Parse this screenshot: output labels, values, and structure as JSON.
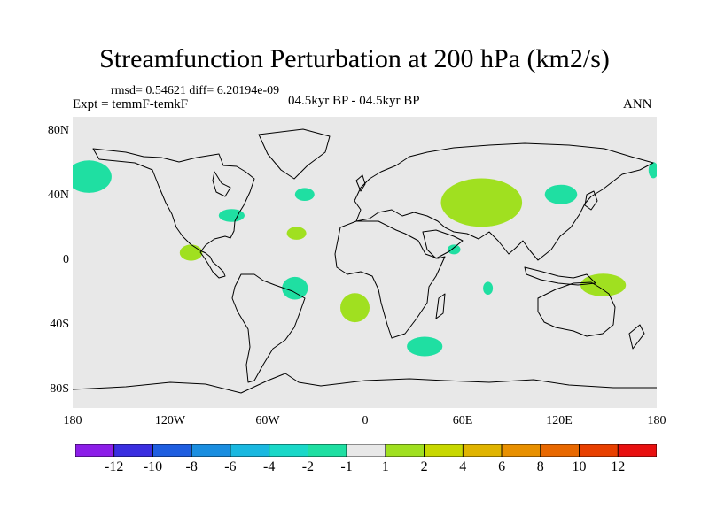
{
  "title": "Streamfunction Perturbation at 200 hPa (km2/s)",
  "stats": "rmsd= 0.54621 diff= 6.20194e-09",
  "expt": "Expt = temmF-temkF",
  "period": "04.5kyr BP - 04.5kyr BP",
  "season": "ANN",
  "colors": {
    "ocean": "#e8e8e8",
    "coast": "#000000",
    "teal": "#1fdfa2",
    "lime": "#a0e020"
  },
  "axes": {
    "lat_labels": [
      "80N",
      "40N",
      "0",
      "40S",
      "80S"
    ],
    "lon_labels": [
      "180",
      "120W",
      "60W",
      "0",
      "60E",
      "120E",
      "180"
    ]
  },
  "anomalies": [
    {
      "name": "north-pacific-west",
      "lon": -170,
      "lat": 53,
      "rx": 14,
      "ry": 10,
      "level": "-1",
      "color": "teal"
    },
    {
      "name": "east-atlantic-north",
      "lon": -37,
      "lat": 42,
      "rx": 6,
      "ry": 4,
      "level": "-1",
      "color": "teal"
    },
    {
      "name": "florida",
      "lon": -82,
      "lat": 29,
      "rx": 8,
      "ry": 4,
      "level": "-1",
      "color": "teal"
    },
    {
      "name": "west-africa-coast",
      "lon": -42,
      "lat": 18,
      "rx": 6,
      "ry": 4,
      "level": "1",
      "color": "lime"
    },
    {
      "name": "east-pacific-tropic",
      "lon": -107,
      "lat": 6,
      "rx": 7,
      "ry": 5,
      "level": "1",
      "color": "lime"
    },
    {
      "name": "brazil-coast",
      "lon": -43,
      "lat": -16,
      "rx": 8,
      "ry": 7,
      "level": "-1",
      "color": "teal"
    },
    {
      "name": "south-atlantic",
      "lon": -6,
      "lat": -28,
      "rx": 9,
      "ry": 9,
      "level": "1",
      "color": "lime"
    },
    {
      "name": "south-indian-ocean",
      "lon": 37,
      "lat": -52,
      "rx": 11,
      "ry": 6,
      "level": "-1",
      "color": "teal"
    },
    {
      "name": "horn-of-africa",
      "lon": 55,
      "lat": 8,
      "rx": 4,
      "ry": 3,
      "level": "-1",
      "color": "teal"
    },
    {
      "name": "indian-ocean-mid",
      "lon": 76,
      "lat": -16,
      "rx": 3,
      "ry": 4,
      "level": "-1",
      "color": "teal"
    },
    {
      "name": "central-asia",
      "lon": 72,
      "lat": 37,
      "rx": 25,
      "ry": 15,
      "level": "2",
      "color": "lime"
    },
    {
      "name": "north-china",
      "lon": 121,
      "lat": 42,
      "rx": 10,
      "ry": 6,
      "level": "-1",
      "color": "teal"
    },
    {
      "name": "north-australia",
      "lon": 147,
      "lat": -14,
      "rx": 14,
      "ry": 7,
      "level": "1",
      "color": "lime"
    },
    {
      "name": "north-pacific-east",
      "lon": 178,
      "lat": 57,
      "rx": 3,
      "ry": 5,
      "level": "-1",
      "color": "teal"
    }
  ],
  "colorbar": {
    "colors": [
      "#8c1ee8",
      "#3a2ee0",
      "#1f5ee0",
      "#1a8ee0",
      "#1ab8e0",
      "#1ad8c8",
      "#1fdfa2",
      "#e8e8e8",
      "#a0e020",
      "#c8d800",
      "#e0b400",
      "#e89000",
      "#e86800",
      "#e84000",
      "#e81010"
    ],
    "labels": [
      "-12",
      "-10",
      "-8",
      "-6",
      "-4",
      "-2",
      "-1",
      "1",
      "2",
      "4",
      "6",
      "8",
      "10",
      "12"
    ]
  }
}
